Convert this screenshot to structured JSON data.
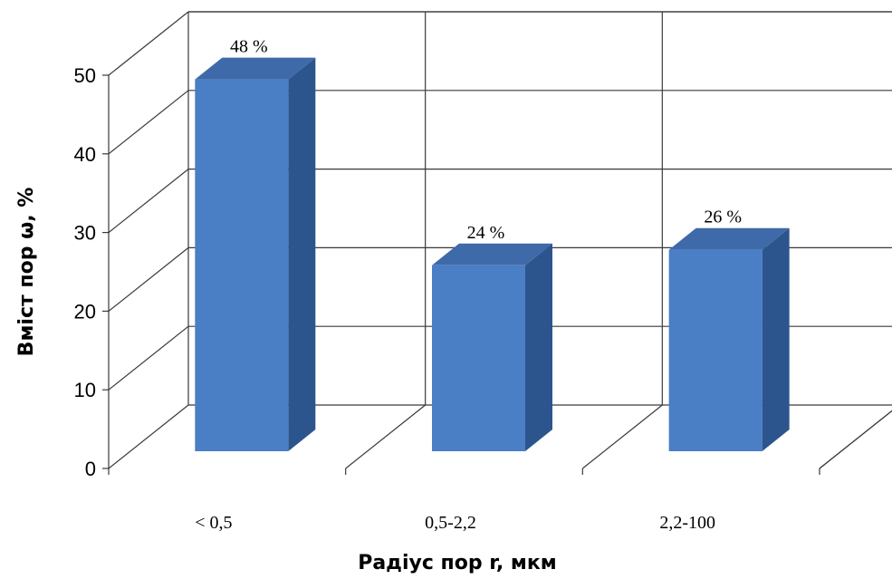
{
  "chart_data": {
    "type": "bar",
    "title": "",
    "xlabel": "Радіус пор r, мкм",
    "ylabel": "Вміст пор ω, %",
    "categories": [
      "< 0,5",
      "0,5-2,2",
      "2,2-100"
    ],
    "values": [
      48,
      24,
      26
    ],
    "data_labels": [
      "48 %",
      "24 %",
      "26 %"
    ],
    "ylim": [
      0,
      50
    ],
    "yticks": [
      "0",
      "10",
      "20",
      "30",
      "40",
      "50"
    ],
    "grid": true,
    "legend": "none",
    "colors": {
      "front": "#4a7ec5",
      "side": "#2c558e",
      "top": "#3f6aa9"
    }
  }
}
